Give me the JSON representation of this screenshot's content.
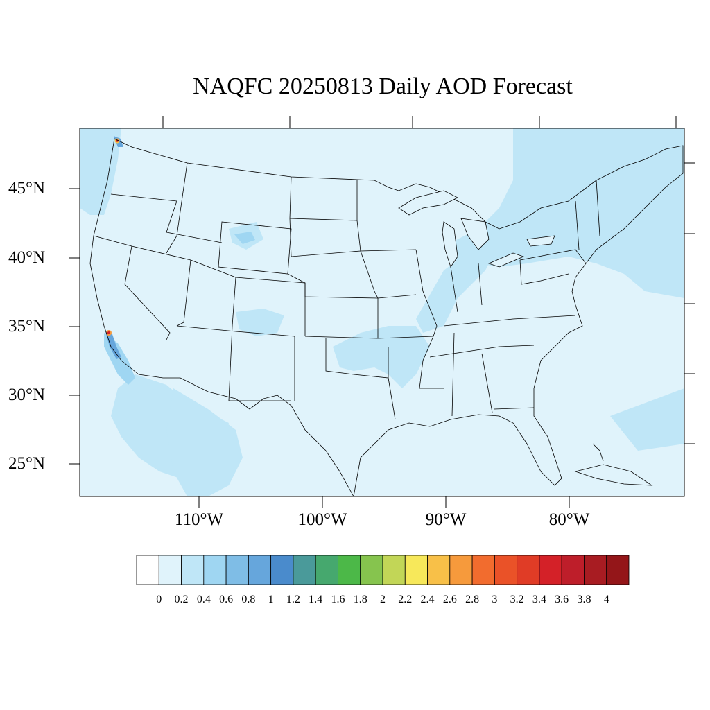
{
  "title": "NAQFC 20250813 Daily AOD Forecast",
  "latitude_labels": [
    "45°N",
    "40°N",
    "35°N",
    "30°N",
    "25°N"
  ],
  "longitude_labels": [
    "110°W",
    "100°W",
    "90°W",
    "80°W"
  ],
  "colorbar": {
    "ticks": [
      "0",
      "0.2",
      "0.4",
      "0.6",
      "0.8",
      "1",
      "1.2",
      "1.4",
      "1.6",
      "1.8",
      "2",
      "2.2",
      "2.4",
      "2.6",
      "2.8",
      "3",
      "3.2",
      "3.4",
      "3.6",
      "3.8",
      "4"
    ],
    "colors": [
      "#ffffff",
      "#e0f3fb",
      "#bfe6f7",
      "#9fd6f2",
      "#7fbde6",
      "#66a6dc",
      "#4a8bcc",
      "#4a9a9a",
      "#46a86e",
      "#4cb848",
      "#86c44e",
      "#c2d657",
      "#f7e85a",
      "#f8c048",
      "#f69a3c",
      "#f26c2e",
      "#ea5228",
      "#e03c26",
      "#d42128",
      "#be1e2a",
      "#a81c22",
      "#941619"
    ]
  },
  "colors": {
    "ocean_fill": "#e0f3fb",
    "haze_fill": "#bfe6f7",
    "haze_medium": "#9fd6f2",
    "haze_strong": "#7fbde6",
    "boundary": "#000000"
  },
  "regions": [
    {
      "name": "central-haze",
      "level": 0.4
    },
    {
      "name": "california-coast-haze",
      "level": 0.6
    },
    {
      "name": "northeast-haze",
      "level": 0.4
    },
    {
      "name": "atlantic-haze",
      "level": 0.4
    }
  ]
}
